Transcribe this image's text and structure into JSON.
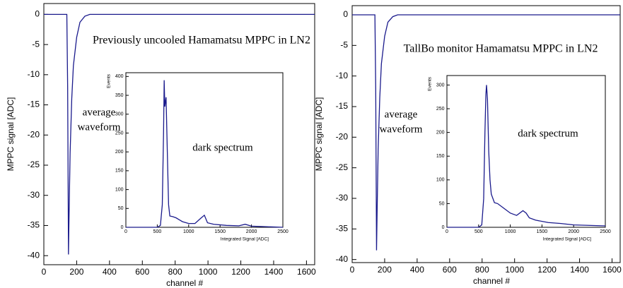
{
  "chart_data": [
    {
      "type": "line",
      "xlabel": "channel #",
      "ylabel": "MPPC signal [ADC]",
      "annotations": [
        "Previously uncooled Hamamatsu MPPC in LN2",
        "average",
        "waveform"
      ],
      "x": [
        0,
        140,
        145,
        150,
        155,
        160,
        170,
        180,
        200,
        220,
        250,
        280,
        300,
        1650
      ],
      "values": [
        0,
        0,
        -12,
        -39.8,
        -31,
        -23,
        -14,
        -8.5,
        -3.8,
        -1.3,
        -0.3,
        0,
        0,
        0
      ],
      "color": "#1a1a8c",
      "xlim": [
        0,
        1650
      ],
      "ylim": [
        -41.5,
        1.8
      ],
      "xticks": [
        0,
        200,
        400,
        600,
        800,
        1000,
        1200,
        1400,
        1600
      ],
      "yticks": [
        0,
        -5,
        -10,
        -15,
        -20,
        -25,
        -30,
        -35,
        -40
      ]
    },
    {
      "type": "line",
      "xlabel": "Integrated Signal [ADC]",
      "ylabel": "Events",
      "annotations": [
        "dark spectrum"
      ],
      "x": [
        0,
        500,
        550,
        580,
        600,
        610,
        620,
        640,
        660,
        680,
        700,
        750,
        800,
        900,
        1000,
        1100,
        1200,
        1250,
        1300,
        1400,
        1600,
        1800,
        1900,
        2000,
        2500
      ],
      "values": [
        0,
        0,
        5,
        60,
        250,
        390,
        320,
        345,
        200,
        60,
        30,
        28,
        25,
        15,
        10,
        10,
        25,
        32,
        12,
        8,
        5,
        4,
        8,
        3,
        0
      ],
      "color": "#1a1a8c",
      "xlim": [
        0,
        2500
      ],
      "ylim": [
        0,
        410
      ],
      "xticks": [
        0,
        500,
        1000,
        1500,
        2000,
        2500
      ],
      "yticks": [
        0,
        50,
        100,
        150,
        200,
        250,
        300,
        350,
        400
      ]
    },
    {
      "type": "line",
      "xlabel": "channel #",
      "ylabel": "MPPC signal [ADC]",
      "annotations": [
        "TallBo monitor Hamamatsu MPPC in LN2",
        "average",
        "waveform"
      ],
      "x": [
        0,
        140,
        145,
        150,
        155,
        160,
        170,
        180,
        200,
        220,
        250,
        280,
        300,
        1650
      ],
      "values": [
        0,
        0,
        -12,
        -38.5,
        -30,
        -22,
        -13.5,
        -8,
        -3.5,
        -1.2,
        -0.3,
        0,
        0,
        0
      ],
      "color": "#1a1a8c",
      "xlim": [
        0,
        1650
      ],
      "ylim": [
        -40.5,
        1.5
      ],
      "xticks": [
        0,
        200,
        400,
        600,
        800,
        1000,
        1200,
        1400,
        1600
      ],
      "yticks": [
        0,
        -5,
        -10,
        -15,
        -20,
        -25,
        -30,
        -35,
        -40
      ]
    },
    {
      "type": "line",
      "xlabel": "Integrated Signal [ADC]",
      "ylabel": "Events",
      "annotations": [
        "dark spectrum"
      ],
      "x": [
        0,
        500,
        550,
        580,
        600,
        615,
        625,
        640,
        660,
        680,
        700,
        750,
        800,
        900,
        1000,
        1100,
        1200,
        1250,
        1300,
        1400,
        1600,
        1800,
        2000,
        2500
      ],
      "values": [
        0,
        0,
        5,
        60,
        200,
        280,
        300,
        270,
        160,
        100,
        70,
        52,
        50,
        40,
        30,
        25,
        35,
        30,
        20,
        15,
        10,
        8,
        5,
        3
      ],
      "color": "#1a1a8c",
      "xlim": [
        0,
        2500
      ],
      "ylim": [
        0,
        320
      ],
      "xticks": [
        0,
        500,
        1000,
        1500,
        2000,
        2500
      ],
      "yticks": [
        0,
        50,
        100,
        150,
        200,
        250,
        300
      ]
    }
  ]
}
